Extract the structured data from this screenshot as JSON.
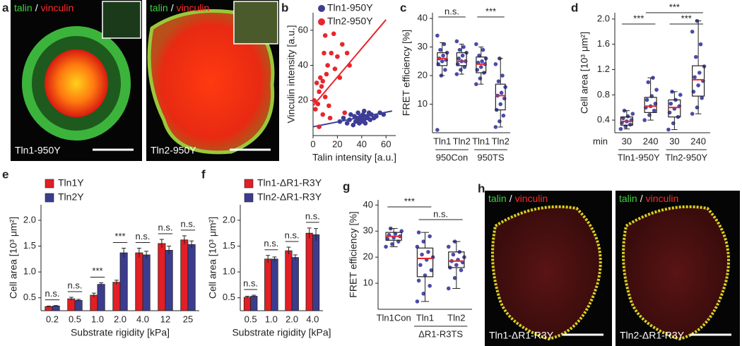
{
  "chart_data": [
    {
      "type": "scatter",
      "panel": "b",
      "xlabel": "Talin intensity [a.u.]",
      "ylabel": "Vinculin intensity [a.u.]",
      "xlim": [
        0,
        68
      ],
      "ylim": [
        0,
        70
      ],
      "xticks": [
        0,
        20,
        40,
        60
      ],
      "yticks": [
        20,
        40,
        60
      ],
      "legend": "top-left",
      "series": [
        {
          "name": "Tln1-950Y",
          "color": "#3d3d96",
          "x": [
            22,
            25,
            28,
            30,
            31,
            33,
            34,
            35,
            36,
            37,
            38,
            38,
            39,
            40,
            40,
            41,
            42,
            42,
            43,
            44,
            45,
            46,
            47,
            48,
            50,
            52,
            55,
            58
          ],
          "y": [
            8,
            10,
            7,
            9,
            12,
            6,
            11,
            8,
            10,
            13,
            7,
            9,
            11,
            8,
            10,
            12,
            9,
            14,
            7,
            11,
            10,
            13,
            9,
            12,
            10,
            11,
            13,
            12
          ],
          "fit": {
            "x": [
              0,
              65
            ],
            "y": [
              5,
              14
            ]
          }
        },
        {
          "name": "Tln2-950Y",
          "color": "#e8262b",
          "x": [
            1,
            2,
            3,
            4,
            5,
            5,
            6,
            7,
            8,
            8,
            9,
            10,
            10,
            11,
            12,
            13,
            14,
            15,
            17,
            18,
            20,
            22,
            24,
            26,
            28,
            30
          ],
          "y": [
            20,
            15,
            30,
            18,
            5,
            25,
            33,
            28,
            31,
            12,
            47,
            22,
            57,
            35,
            40,
            17,
            10,
            47,
            58,
            38,
            45,
            33,
            52,
            13,
            47,
            40
          ],
          "fit": {
            "x": [
              0,
              60
            ],
            "y": [
              17,
              66
            ]
          }
        }
      ]
    },
    {
      "type": "box",
      "panel": "c",
      "ylabel": "FRET efficiency [%]",
      "ylim": [
        0,
        42
      ],
      "yticks": [
        10,
        20,
        30,
        40
      ],
      "point_color": "#4b4ba6",
      "median_color": "#e8262b",
      "groups": [
        {
          "name": "950Con",
          "categories": [
            "Tln1",
            "Tln2"
          ]
        },
        {
          "name": "950TS",
          "categories": [
            "Tln1",
            "Tln2"
          ]
        }
      ],
      "boxes": [
        {
          "whisker_low": 20,
          "q1": 23.5,
          "median": 26,
          "q3": 28,
          "whisker_high": 31.5,
          "points": [
            1,
            20,
            22,
            24,
            25,
            25.5,
            26,
            27,
            28,
            29,
            31,
            34
          ]
        },
        {
          "whisker_low": 20.5,
          "q1": 23.5,
          "median": 25,
          "q3": 28,
          "whisker_high": 31,
          "points": [
            20.5,
            22,
            23,
            24,
            25,
            25,
            26,
            27,
            28,
            29,
            30,
            32
          ]
        },
        {
          "whisker_low": 17,
          "q1": 21,
          "median": 24,
          "q3": 26.5,
          "whisker_high": 30,
          "points": [
            17,
            19,
            21,
            22,
            23,
            24,
            24.5,
            25,
            26,
            27,
            29,
            31
          ]
        },
        {
          "whisker_low": 2,
          "q1": 8,
          "median": 13,
          "q3": 17,
          "whisker_high": 26,
          "points": [
            2,
            4,
            6,
            8,
            10,
            12,
            13,
            14,
            16,
            18,
            20,
            24,
            26
          ]
        }
      ],
      "annotations": [
        "n.s.",
        "***"
      ]
    },
    {
      "type": "box",
      "panel": "d",
      "ylabel": "Cell area [10³ μm²]",
      "x_prefix": "min",
      "ylim": [
        0.2,
        2.1
      ],
      "yticks": [
        0.4,
        0.8,
        1.2,
        1.6,
        {
          "value": 2,
          "label": "2.0"
        }
      ],
      "point_color": "#4b4ba6",
      "median_color": "#e8262b",
      "groups": [
        {
          "name": "Tln1-950Y",
          "categories": [
            "30",
            "240"
          ]
        },
        {
          "name": "Tln2-950Y",
          "categories": [
            "30",
            "240"
          ]
        }
      ],
      "boxes": [
        {
          "whisker_low": 0.26,
          "q1": 0.32,
          "median": 0.38,
          "q3": 0.45,
          "whisker_high": 0.55,
          "points": [
            0.26,
            0.3,
            0.33,
            0.36,
            0.38,
            0.4,
            0.43,
            0.46,
            0.5,
            0.55
          ]
        },
        {
          "whisker_low": 0.4,
          "q1": 0.52,
          "median": 0.62,
          "q3": 0.76,
          "whisker_high": 1.07,
          "points": [
            0.4,
            0.48,
            0.55,
            0.6,
            0.62,
            0.66,
            0.72,
            0.78,
            0.88,
            1.0,
            1.07
          ]
        },
        {
          "whisker_low": 0.25,
          "q1": 0.45,
          "median": 0.6,
          "q3": 0.72,
          "whisker_high": 0.85,
          "points": [
            0.25,
            0.35,
            0.45,
            0.52,
            0.58,
            0.62,
            0.66,
            0.72,
            0.8,
            0.85
          ]
        },
        {
          "whisker_low": 0.5,
          "q1": 0.78,
          "median": 1.04,
          "q3": 1.26,
          "whisker_high": 1.97,
          "points": [
            0.5,
            0.6,
            0.75,
            0.85,
            0.95,
            1.02,
            1.08,
            1.15,
            1.25,
            1.4,
            1.6,
            1.8,
            1.97
          ]
        }
      ],
      "annotations": [
        "***",
        "***",
        "***"
      ]
    },
    {
      "type": "bar",
      "panel": "e",
      "ylabel": "Cell area [10³ μm²]",
      "xlabel": "Substrate rigidity [kPa]",
      "ylim": [
        0.25,
        2.3
      ],
      "yticks": [
        0.5,
        {
          "value": 1,
          "label": "1.0"
        },
        1.5,
        {
          "value": 2,
          "label": "2.0"
        }
      ],
      "legend": "top-left",
      "categories": [
        "0.2",
        "0.5",
        "1.0",
        "2.0",
        "4.0",
        "12",
        "25"
      ],
      "series": [
        {
          "name": "Tln1Y",
          "color": "#e31e24",
          "values": [
            0.33,
            0.48,
            0.55,
            0.8,
            1.37,
            1.55,
            1.62
          ],
          "errors": [
            0.01,
            0.03,
            0.04,
            0.04,
            0.09,
            0.08,
            0.08
          ]
        },
        {
          "name": "Tln2Y",
          "color": "#3c3c8f",
          "values": [
            0.34,
            0.45,
            0.76,
            1.37,
            1.33,
            1.42,
            1.53
          ],
          "errors": [
            0.01,
            0.02,
            0.03,
            0.09,
            0.07,
            0.08,
            0.07
          ]
        }
      ],
      "annotations": [
        "n.s.",
        "n.s.",
        "***",
        "***",
        "n.s.",
        "n.s.",
        "n.s."
      ]
    },
    {
      "type": "bar",
      "panel": "f",
      "ylabel": "Cell area [10³ μm²]",
      "xlabel": "Substrate rigidity [kPa]",
      "ylim": [
        0.25,
        2.3
      ],
      "yticks": [
        0.5,
        {
          "value": 1,
          "label": "1.0"
        },
        1.5,
        {
          "value": 2,
          "label": "2.0"
        }
      ],
      "legend": "top-left",
      "categories": [
        "0.5",
        "1.0",
        "2.0",
        "4.0"
      ],
      "series": [
        {
          "name": "Tln1-ΔR1-R3Y",
          "color": "#e31e24",
          "values": [
            0.51,
            1.25,
            1.41,
            1.75
          ],
          "errors": [
            0.02,
            0.07,
            0.07,
            0.1
          ]
        },
        {
          "name": "Tln2-ΔR1-R3Y",
          "color": "#3c3c8f",
          "values": [
            0.53,
            1.25,
            1.28,
            1.72
          ],
          "errors": [
            0.02,
            0.04,
            0.05,
            0.12
          ]
        }
      ],
      "annotations": [
        "n.s.",
        "n.s.",
        "n.s.",
        "n.s."
      ]
    },
    {
      "type": "box",
      "panel": "g",
      "ylabel": "FRET efficiency [%]",
      "ylim": [
        0,
        42
      ],
      "yticks": [
        10,
        20,
        30,
        40
      ],
      "point_color": "#4b4ba6",
      "median_color": "#e8262b",
      "groups": [
        {
          "name": null,
          "categories": [
            "Tln1Con"
          ]
        },
        {
          "name": "ΔR1-R3TS",
          "categories": [
            "Tln1",
            "Tln2"
          ]
        }
      ],
      "boxes": [
        {
          "whisker_low": 24,
          "q1": 26.5,
          "median": 28,
          "q3": 29.5,
          "whisker_high": 31,
          "points": [
            24,
            25,
            26,
            27,
            27.5,
            28,
            28.5,
            29,
            30,
            31
          ]
        },
        {
          "whisker_low": 3,
          "q1": 12.5,
          "median": 19.5,
          "q3": 23.5,
          "whisker_high": 29.5,
          "points": [
            3,
            6,
            9,
            11,
            13,
            15,
            17,
            19,
            20,
            21,
            22,
            24,
            26,
            28,
            29.5
          ]
        },
        {
          "whisker_low": 8,
          "q1": 16,
          "median": 18.5,
          "q3": 22,
          "whisker_high": 26,
          "points": [
            8,
            12,
            15,
            16,
            17,
            18,
            18.5,
            19,
            20,
            21,
            22,
            24,
            26
          ]
        }
      ],
      "annotations": [
        "***",
        "n.s."
      ]
    }
  ],
  "images": [
    {
      "panel": "a",
      "stain": [
        "talin",
        "/",
        "vinculin"
      ],
      "cells": [
        {
          "label": "Tln1-950Y"
        },
        {
          "label": "Tln2-950Y"
        }
      ]
    },
    {
      "panel": "h",
      "stain": [
        "talin",
        "/",
        "vinculin"
      ],
      "cells": [
        {
          "label": "Tln1-ΔR1-R3Y"
        },
        {
          "label": "Tln2-ΔR1-R3Y"
        }
      ]
    }
  ]
}
